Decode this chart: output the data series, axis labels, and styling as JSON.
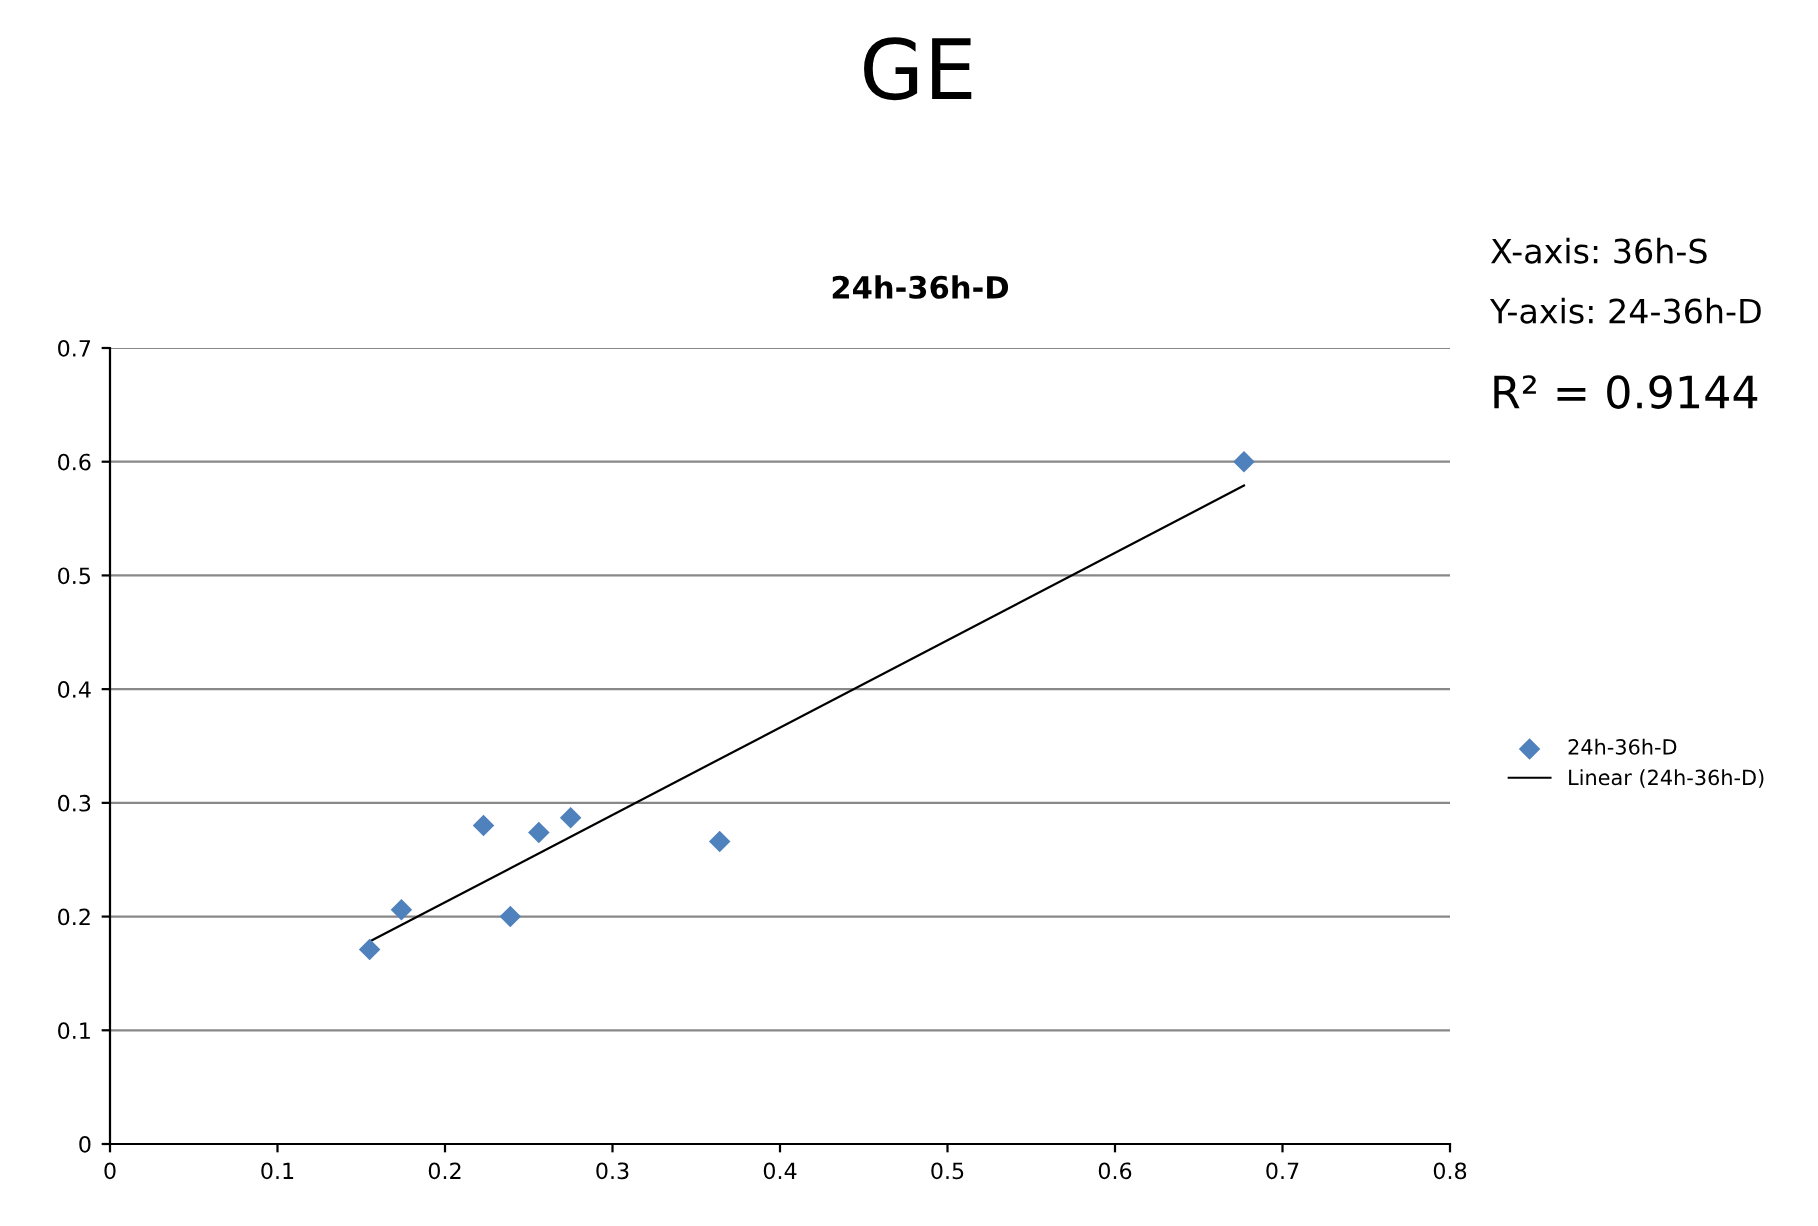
{
  "chart_data": {
    "type": "scatter",
    "title": "GE",
    "subtitle": "24h-36h-D",
    "annotations": [
      "X-axis: 36h-S",
      "Y-axis: 24-36h-D",
      "R² = 0.9144"
    ],
    "x": [
      0.155,
      0.174,
      0.223,
      0.239,
      0.256,
      0.275,
      0.364,
      0.677
    ],
    "series": [
      {
        "name": "24h-36h-D",
        "color": "#4f81bd",
        "marker": "diamond",
        "values": [
          0.171,
          0.206,
          0.28,
          0.2,
          0.274,
          0.287,
          0.266,
          0.6
        ]
      },
      {
        "name": "Linear (24h-36h-D)",
        "type": "line",
        "color": "#000000",
        "marker": "none",
        "x": [
          0.155,
          0.677
        ],
        "values": [
          0.178,
          0.579
        ]
      }
    ],
    "xlim": [
      0,
      0.8
    ],
    "xticks": [
      0,
      0.1,
      0.2,
      0.3,
      0.4,
      0.5,
      0.6,
      0.7,
      0.8
    ],
    "ylim": [
      0,
      0.7
    ],
    "yticks": [
      0,
      0.1,
      0.2,
      0.3,
      0.4,
      0.5,
      0.6,
      0.7
    ],
    "grid": "y",
    "legend": "right"
  }
}
